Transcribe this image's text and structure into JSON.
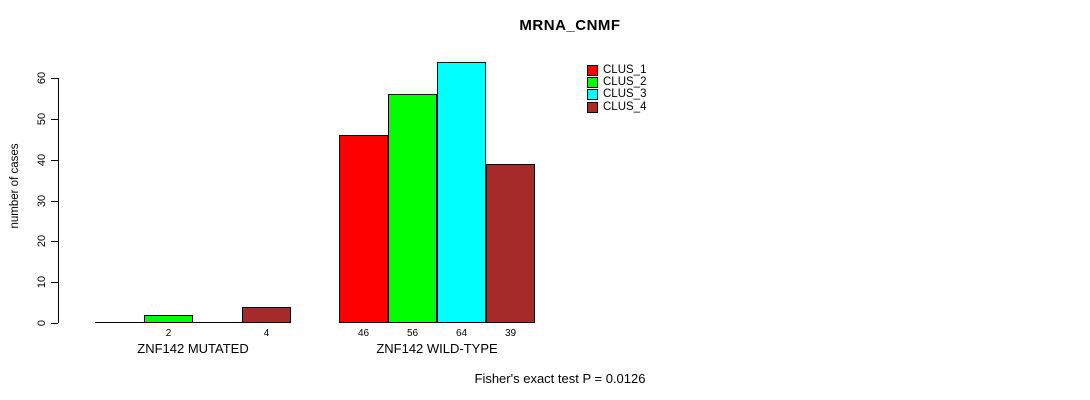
{
  "chart_data": {
    "type": "bar",
    "title": "MRNA_CNMF",
    "xlabel": "",
    "ylabel": "number of cases",
    "ylim": [
      0,
      60
    ],
    "yticks": [
      0,
      10,
      20,
      30,
      40,
      50,
      60
    ],
    "grid": false,
    "legend_position": "top-right",
    "series": [
      {
        "name": "CLUS_1",
        "color": "#FF0000"
      },
      {
        "name": "CLUS_2",
        "color": "#00FF00"
      },
      {
        "name": "CLUS_3",
        "color": "#00FFFF"
      },
      {
        "name": "CLUS_4",
        "color": "#A52A2A"
      }
    ],
    "groups": [
      {
        "label": "ZNF142 MUTATED",
        "values": [
          0,
          2,
          0,
          4
        ],
        "value_labels": [
          "",
          "2",
          "",
          "4"
        ]
      },
      {
        "label": "ZNF142 WILD-TYPE",
        "values": [
          46,
          56,
          64,
          39
        ],
        "value_labels": [
          "46",
          "56",
          "64",
          "39"
        ]
      }
    ],
    "annotation": "Fisher's exact test P = 0.0126"
  }
}
